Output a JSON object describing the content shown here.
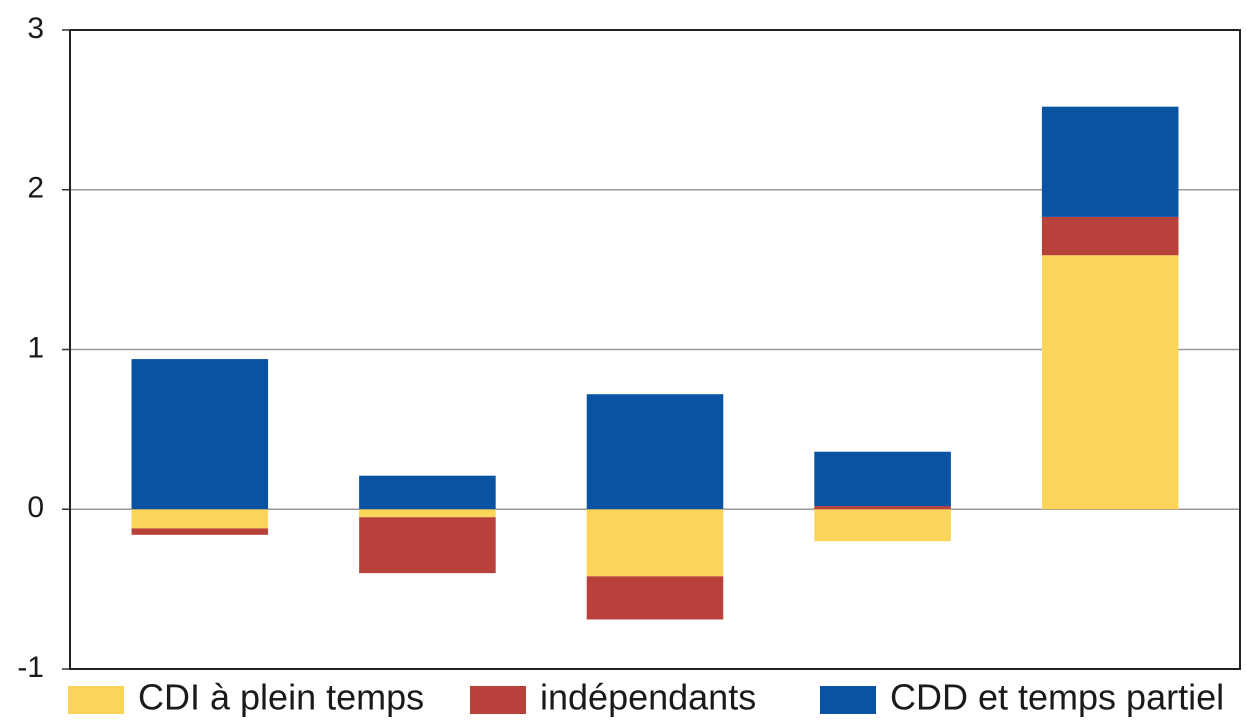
{
  "chart_data": {
    "type": "stacked-bar",
    "categories": [
      null,
      null,
      null,
      null,
      null
    ],
    "series": [
      {
        "name": "CDI à plein temps",
        "color": "#fbd45a",
        "values": [
          -0.12,
          -0.05,
          -0.42,
          -0.2,
          1.59
        ]
      },
      {
        "name": "indépendants",
        "color": "#b8413c",
        "values": [
          -0.04,
          -0.35,
          -0.27,
          0.02,
          0.24
        ]
      },
      {
        "name": "CDD et temps partiel",
        "color": "#0a52a2",
        "values": [
          0.94,
          0.21,
          0.72,
          0.34,
          0.69
        ]
      }
    ],
    "ylim": [
      -1,
      3
    ],
    "yticks": [
      -1,
      0,
      1,
      2,
      3
    ],
    "grid": true,
    "legend": "bottom"
  }
}
